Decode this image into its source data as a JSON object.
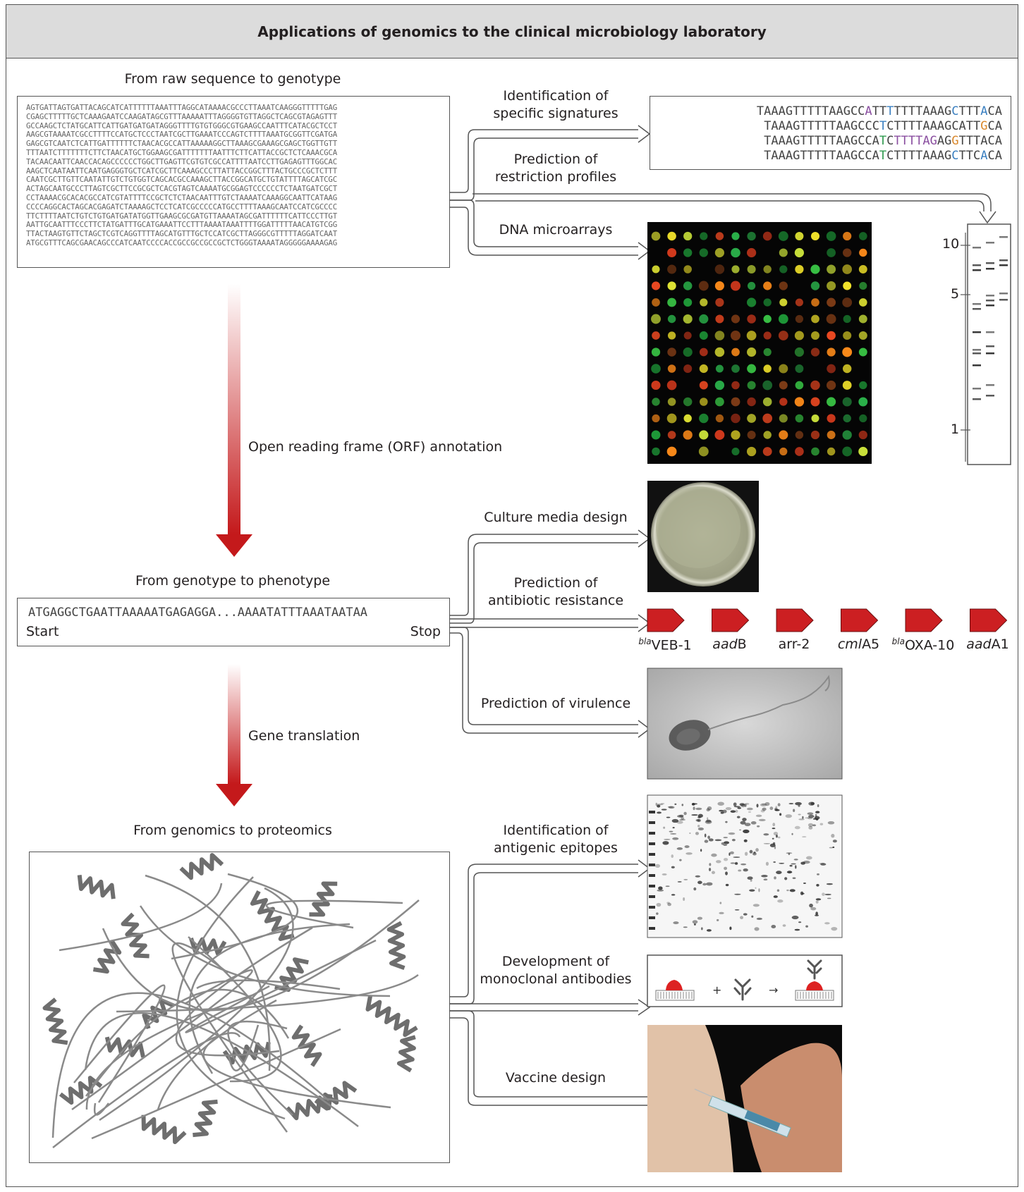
{
  "header": {
    "title": "Applications of genomics to the clinical microbiology laboratory"
  },
  "sections": {
    "raw_to_genotype": "From raw sequence to genotype",
    "genotype_to_phenotype": "From genotype to phenotype",
    "genomics_to_proteomics": "From genomics to proteomics"
  },
  "steps": {
    "orf": "Open reading frame (ORF) annotation",
    "translation": "Gene translation"
  },
  "raw_sequence": [
    "AGTGATTAGTGATTACAGCATCATTTTTTAAATTTAGGCATAAAACGCCCTTAAATCAAGGGTTTTTGAG",
    "CGAGCTTTTTGCTCAAAGAATCCAAGATAGCGTTTAAAAATTTAGGGGTGTTAGGCTCAGCGTAGAGTTT",
    "GCCAAGCTCTATGCATTCATTGATGATGATAGGGTTTTGTGTGGGCGTGAAGCCAATTTCATACGCTCCT",
    "AAGCGTAAAATCGCCTTTTCCATGCTCCCTAATCGCTTGAAATCCCAGTCTTTTAAATGCGGTTCGATGA",
    "GAGCGTCAATCTCATTGATTTTTTCTAACACGCCATTAAAAAGGCTTAAAGCGAAAGCGAGCTGGTTGTT",
    "TTTAATCTTTTTTTCTTCTAACATGCTGGAAGCGATTTTTTTAATTTCTTCATTACCGCTCTCAAACGCA",
    "TACAACAATTCAACCACAGCCCCCCTGGCTTGAGTTCGTGTCGCCATTTTAATCCTTGAGAGTTTGGCAC",
    "AAGCTCAATAATTCAATGAGGGTGCTCATCGCTTCAAAGCCCTTATTACCGGCTTTACTGCCCGCTCTTT",
    "CAATCGCTTGTTCAATATTGTCTGTGGTCAGCACGCCAAAGCTTACCGGCATGCTGTATTTTAGCATCGC",
    "ACTAGCAATGCCCTTAGTCGCTTCCGCGCTCACGTAGTCAAAATGCGGAGTCCCCCCTCTAATGATCGCT",
    "CCTAAAACGCACACGCCATCGTATTTTCCGCTCTCTAACAATTTGTCTAAAATCAAAGGCAATTCATAAG",
    "CCCCAGGCACTAGCACGAGATCTAAAAGCTCCTCATCGCCCCCATGCCTTTTAAAGCAATCCATCGCCCC",
    "TTCTTTTAATCTGTCTGTGATGATATGGTTGAAGCGCGATGTTAAAATAGCGATTTTTTCATTCCCTTGT",
    "AATTGCAATTTCCCTTCTATGATTTGCATGAAATTCCTTTAAAATAAATTTTGGATTTTTAACATGTCGG",
    "TTACTAAGTGTTCTAGCTCGTCAGGTTTTAGCATGTTTGCTCCATCGCTTAGGGCGTTTTTAGGATCAAT",
    "ATGCGTTTCAGCGAACAGCCCATCAATCCCCACCGCCGCCGCCGCTCTGGGTAAAATAGGGGGAAAAGAG"
  ],
  "applications": {
    "signatures": "Identification of\nspecific signatures",
    "restriction": "Prediction of\nrestriction profiles",
    "microarrays": "DNA microarrays",
    "culture": "Culture media design",
    "resistance": "Prediction of\nantibiotic resistance",
    "virulence": "Prediction of virulence",
    "epitopes": "Identification of\nantigenic epitopes",
    "antibodies": "Development of\nmonoclonal antibodies",
    "vaccine": "Vaccine design"
  },
  "signatures": [
    [
      {
        "t": "TAAAGTTTTTAAGCC"
      },
      {
        "t": "A",
        "c": "p"
      },
      {
        "t": "TT"
      },
      {
        "t": "T",
        "c": "b"
      },
      {
        "t": "TTTTAAAG"
      },
      {
        "t": "C",
        "c": "b"
      },
      {
        "t": "TTT"
      },
      {
        "t": "A",
        "c": "b"
      },
      {
        "t": "CA"
      }
    ],
    [
      {
        "t": "TAAAGTTTTTAAGCCC"
      },
      {
        "t": "T",
        "c": "b"
      },
      {
        "t": "CTTTTAAAGCATT"
      },
      {
        "t": "G",
        "c": "o"
      },
      {
        "t": "CA"
      }
    ],
    [
      {
        "t": "TAAAGTTTTTAAGCCA"
      },
      {
        "t": "T",
        "c": "g"
      },
      {
        "t": "C"
      },
      {
        "t": "TTTTAG",
        "c": "p"
      },
      {
        "t": "AG"
      },
      {
        "t": "G",
        "c": "o"
      },
      {
        "t": "TTTACA"
      }
    ],
    [
      {
        "t": "TAAAGTTTTTAAGCCA"
      },
      {
        "t": "T",
        "c": "g"
      },
      {
        "t": "C"
      },
      {
        "t": "TTTTAAAG"
      },
      {
        "t": "C",
        "c": "b"
      },
      {
        "t": "TTC"
      },
      {
        "t": "A",
        "c": "b"
      },
      {
        "t": "CA"
      }
    ]
  ],
  "gel": {
    "markers": [
      "10",
      "5",
      "1"
    ]
  },
  "orf": {
    "sequence": "ATGAGGCTGAATTAAAAATGAGAGGA...AAAATATTTAAATAATAA",
    "start": "Start",
    "stop": "Stop"
  },
  "genes": [
    {
      "prefix": "bla",
      "name": "VEB-1",
      "italic": ""
    },
    {
      "prefix": "",
      "name": "B",
      "italic": "aad"
    },
    {
      "prefix": "",
      "name": "arr-2",
      "italic": ""
    },
    {
      "prefix": "",
      "name": "A5",
      "italic": "cml"
    },
    {
      "prefix": "bla",
      "name": "OXA-10",
      "italic": ""
    },
    {
      "prefix": "",
      "name": "A1",
      "italic": "aad"
    }
  ],
  "colors": {
    "arrow_red": "#c4191b",
    "gene_red": "#cc1f22",
    "header_bg": "#dcdcdc"
  }
}
